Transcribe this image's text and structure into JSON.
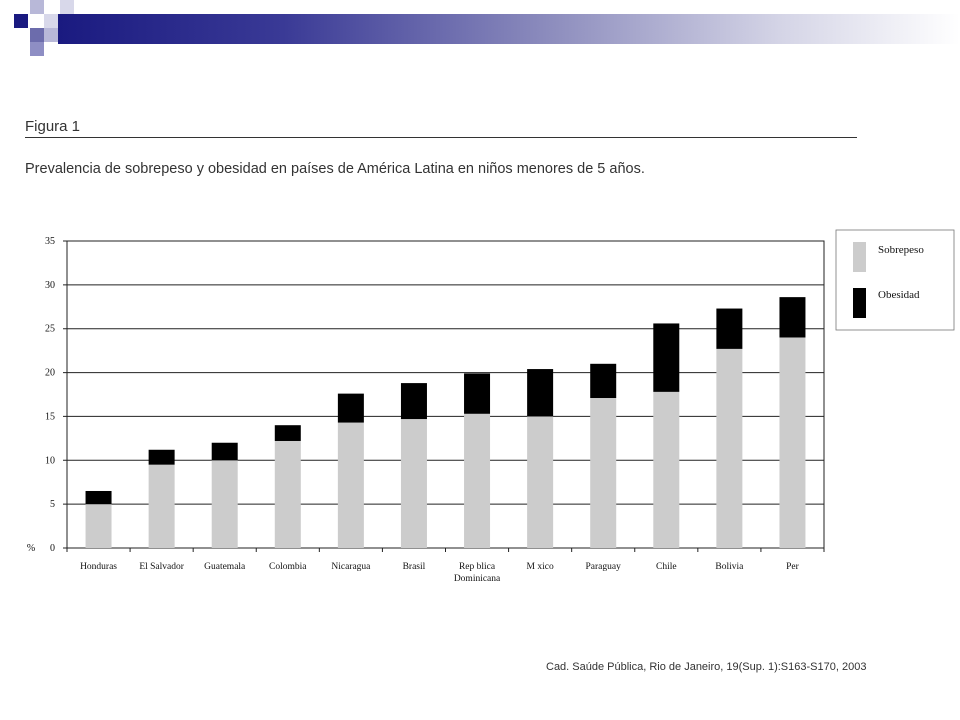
{
  "figure": {
    "label": "Figura 1",
    "caption": "Prevalencia de sobrepeso y obesidad en países de América Latina en niños menores de 5 años.",
    "source": "Cad. Saúde Pública, Rio de Janeiro, 19(Sup. 1):S163-S170, 2003"
  },
  "colors": {
    "sobrepeso": "#cccccc",
    "obesidad": "#000000",
    "banner_dark": "#1a1a80",
    "banner_mid": "#6e6ea8",
    "banner_light": "#c4c4dc"
  },
  "chart_data": {
    "type": "bar",
    "stacked": true,
    "categories": [
      "Honduras",
      "El Salvador",
      "Guatemala",
      "Colombia",
      "Nicaragua",
      "Brasil",
      "Rep blica Dominicana",
      "M xico",
      "Paraguay",
      "Chile",
      "Bolivia",
      "Per"
    ],
    "category_labels": [
      [
        "Honduras"
      ],
      [
        "El Salvador"
      ],
      [
        "Guatemala"
      ],
      [
        "Colombia"
      ],
      [
        "Nicaragua"
      ],
      [
        "Brasil"
      ],
      [
        "Rep blica",
        "Dominicana"
      ],
      [
        "M xico"
      ],
      [
        "Paraguay"
      ],
      [
        "Chile"
      ],
      [
        "Bolivia"
      ],
      [
        "Per"
      ]
    ],
    "series": [
      {
        "name": "Sobrepeso",
        "values": [
          5.0,
          9.5,
          10.0,
          12.2,
          14.3,
          14.7,
          15.3,
          15.0,
          17.1,
          17.8,
          22.7,
          24.0
        ]
      },
      {
        "name": "Obesidad",
        "values": [
          1.5,
          1.7,
          2.0,
          1.8,
          3.3,
          4.1,
          4.6,
          5.4,
          3.9,
          7.8,
          4.6,
          4.6
        ]
      }
    ],
    "ylabel": "%",
    "ylim": [
      0,
      35
    ],
    "yticks": [
      0,
      5,
      10,
      15,
      20,
      25,
      30,
      35
    ],
    "grid": true,
    "legend": "right"
  }
}
